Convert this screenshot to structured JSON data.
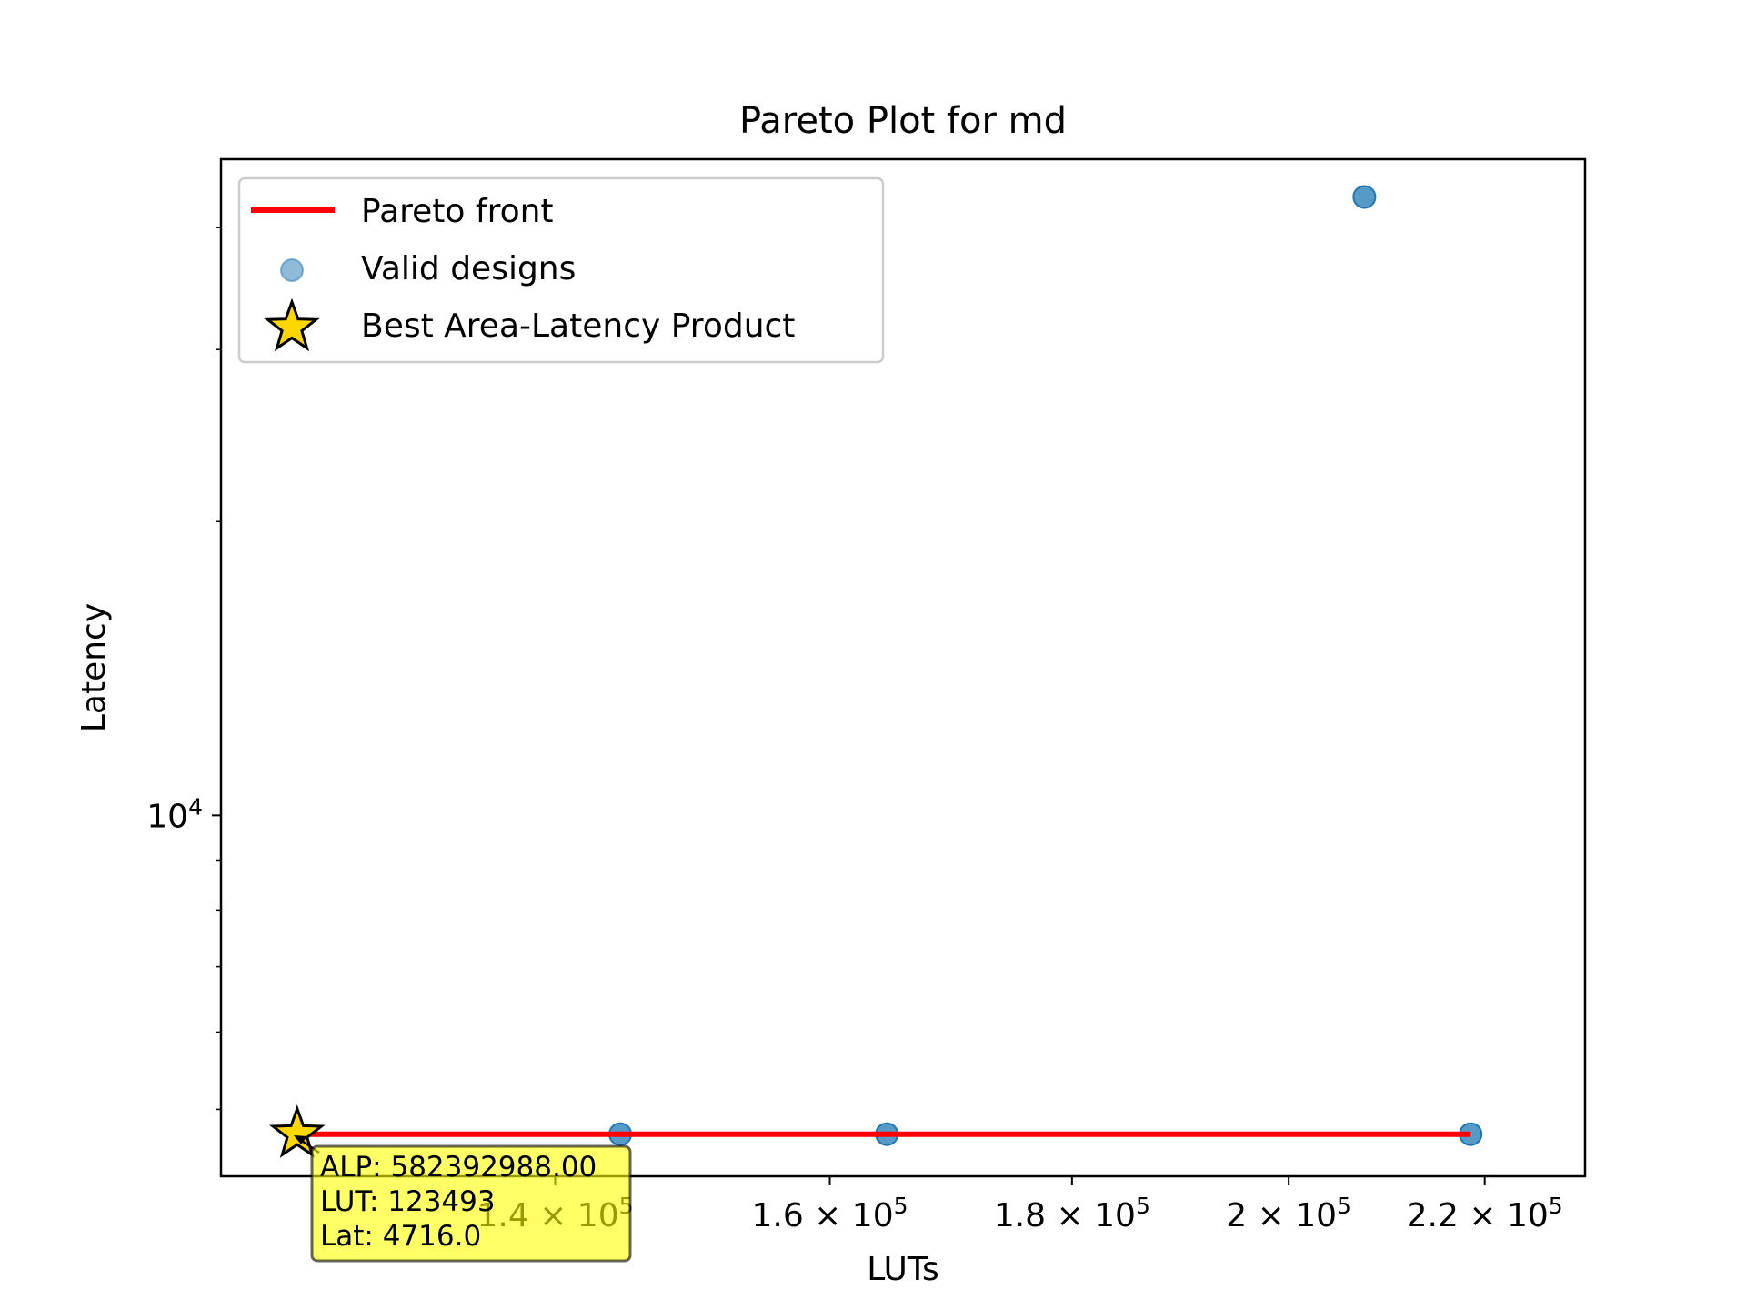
{
  "chart_data": {
    "type": "scatter",
    "title": "Pareto Plot for md",
    "xlabel": "LUTs",
    "ylabel": "Latency",
    "xscale": "log",
    "yscale": "log",
    "xlim": [
      119000,
      231000
    ],
    "ylim": [
      4270,
      47000
    ],
    "x_ticks": [
      {
        "value": 140000,
        "mantissa": "1.4",
        "exp": "5"
      },
      {
        "value": 160000,
        "mantissa": "1.6",
        "exp": "5"
      },
      {
        "value": 180000,
        "mantissa": "1.8",
        "exp": "5"
      },
      {
        "value": 200000,
        "mantissa": "2",
        "exp": "5"
      },
      {
        "value": 220000,
        "mantissa": "2.2",
        "exp": "5"
      }
    ],
    "y_ticks": [
      {
        "value": 10000,
        "base": "10",
        "exp": "4"
      }
    ],
    "y_minor_ticks": [
      5000,
      6000,
      7000,
      8000,
      9000,
      20000,
      30000,
      40000
    ],
    "series": [
      {
        "name": "Pareto front",
        "kind": "line",
        "color": "#ff0000",
        "points": [
          [
            123493,
            4716
          ],
          [
            144500,
            4716
          ],
          [
            164500,
            4716
          ],
          [
            218500,
            4716
          ]
        ]
      },
      {
        "name": "Valid designs",
        "kind": "scatter",
        "color": "#1f77b4",
        "points": [
          [
            123493,
            4716
          ],
          [
            144500,
            4716
          ],
          [
            164500,
            4716
          ],
          [
            218500,
            4716
          ],
          [
            207500,
            43000
          ]
        ]
      },
      {
        "name": "Best Area-Latency Product",
        "kind": "star",
        "color": "#ffd700",
        "points": [
          [
            123493,
            4716
          ]
        ]
      }
    ],
    "legend": {
      "position": "top-left",
      "entries": [
        "Pareto front",
        "Valid designs",
        "Best Area-Latency Product"
      ]
    },
    "annotation": {
      "lines": [
        "ALP: 582392988.00",
        "LUT: 123493",
        "Lat: 4716.0"
      ],
      "background": "#ffff00"
    },
    "grid": false
  }
}
